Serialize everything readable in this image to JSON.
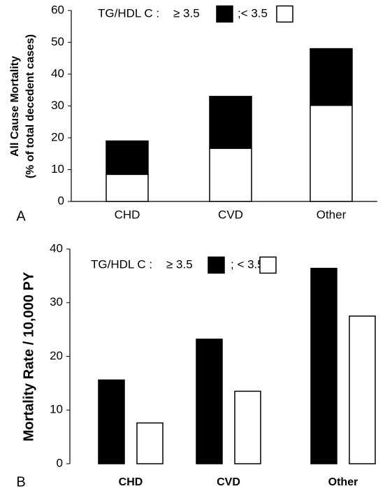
{
  "chart_data": [
    {
      "type": "stacked_bar",
      "panel": "A",
      "y_label": [
        "All Cause Mortality",
        "(% of total decedent cases)"
      ],
      "legend_title": "TG/HDL C :",
      "categories": [
        "CHD",
        "CVD",
        "Other"
      ],
      "series": [
        {
          "name": "≥ 3.5",
          "color": "#000000",
          "values": [
            10.5,
            16.3,
            17.8
          ]
        },
        {
          "name": ";< 3.5",
          "color": "#ffffff",
          "values": [
            8.5,
            16.7,
            30.2
          ]
        }
      ],
      "ylim": [
        0,
        60
      ],
      "yticks": [
        0,
        10,
        20,
        30,
        40,
        50,
        60
      ]
    },
    {
      "type": "grouped_bar",
      "panel": "B",
      "y_label": [
        "Mortality  Rate / 10,000 PY"
      ],
      "legend_title": "TG/HDL C :",
      "categories": [
        "CHD",
        "CVD",
        "Other"
      ],
      "series": [
        {
          "name": "≥ 3.5",
          "color": "#000000",
          "values": [
            15.6,
            23.2,
            36.4
          ]
        },
        {
          "name": "; < 3.5",
          "color": "#ffffff",
          "values": [
            7.6,
            13.5,
            27.5
          ]
        }
      ],
      "ylim": [
        0,
        40
      ],
      "yticks": [
        0,
        10,
        20,
        30,
        40
      ]
    }
  ]
}
